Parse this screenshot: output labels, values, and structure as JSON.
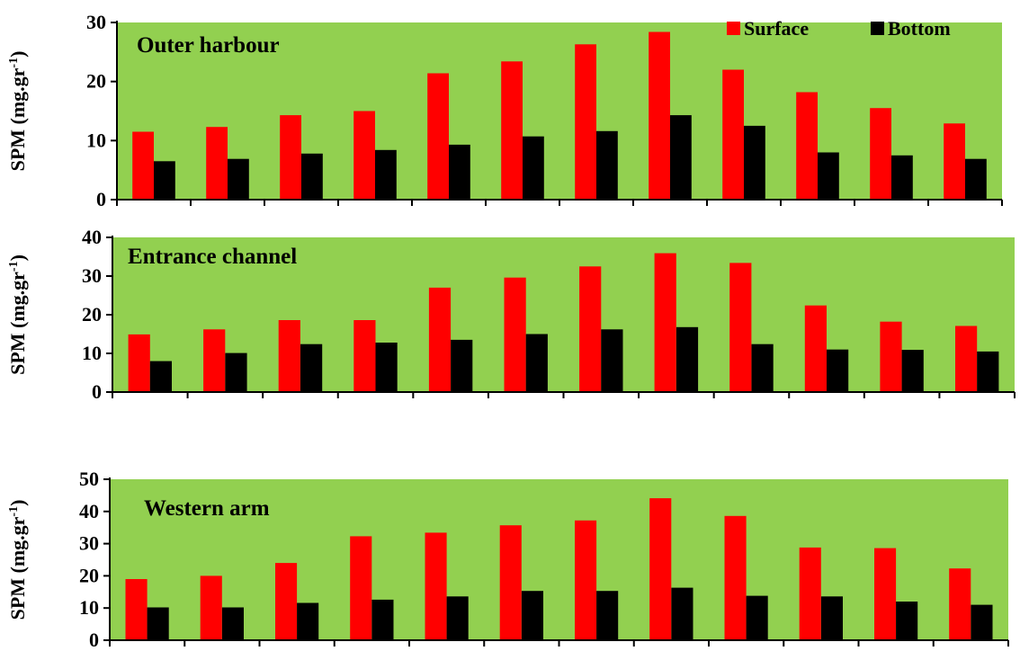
{
  "colors": {
    "plot_background": "#92d050",
    "surface": "#ff0000",
    "bottom": "#000000",
    "axis": "#000000"
  },
  "chart_data": [
    {
      "type": "bar",
      "title": "Outer harbour",
      "ylabel": "SPM (mg.gr",
      "ylabel_sup": "-1",
      "ylabel_close": ")",
      "ylim": [
        0,
        30
      ],
      "yticks": [
        0,
        10,
        20,
        30
      ],
      "legend": {
        "placement": "top-right",
        "entries": [
          "Surface",
          "Bottom"
        ]
      },
      "series": [
        {
          "name": "Surface",
          "values": [
            11.5,
            12.3,
            14.3,
            15.0,
            21.4,
            23.4,
            26.3,
            28.4,
            22.0,
            18.2,
            15.5,
            12.9
          ]
        },
        {
          "name": "Bottom",
          "values": [
            6.5,
            6.9,
            7.8,
            8.4,
            9.3,
            10.7,
            11.6,
            14.3,
            12.5,
            8.0,
            7.5,
            6.9
          ]
        }
      ]
    },
    {
      "type": "bar",
      "title": "Entrance channel",
      "ylabel": "SPM (mg.gr",
      "ylabel_sup": "-1",
      "ylabel_close": ")",
      "ylim": [
        0,
        40
      ],
      "yticks": [
        0,
        10,
        20,
        30,
        40
      ],
      "series": [
        {
          "name": "Surface",
          "values": [
            14.9,
            16.2,
            18.6,
            18.6,
            27.0,
            29.6,
            32.5,
            35.9,
            33.4,
            22.4,
            18.2,
            17.1
          ]
        },
        {
          "name": "Bottom",
          "values": [
            8.0,
            10.1,
            12.4,
            12.8,
            13.5,
            15.0,
            16.2,
            16.8,
            12.4,
            11.0,
            10.9,
            10.5
          ]
        }
      ]
    },
    {
      "type": "bar",
      "title": "Western arm",
      "ylabel": "SPM (mg.gr",
      "ylabel_sup": "-1",
      "ylabel_close": ")",
      "ylim": [
        0,
        50
      ],
      "yticks": [
        0,
        10,
        20,
        30,
        40,
        50
      ],
      "series": [
        {
          "name": "Surface",
          "values": [
            19.0,
            20.0,
            24.0,
            32.3,
            33.4,
            35.7,
            37.2,
            44.1,
            38.6,
            28.8,
            28.6,
            22.3
          ]
        },
        {
          "name": "Bottom",
          "values": [
            10.2,
            10.2,
            11.6,
            12.6,
            13.6,
            15.3,
            15.3,
            16.3,
            13.8,
            13.6,
            12.0,
            11.0
          ]
        }
      ]
    }
  ]
}
